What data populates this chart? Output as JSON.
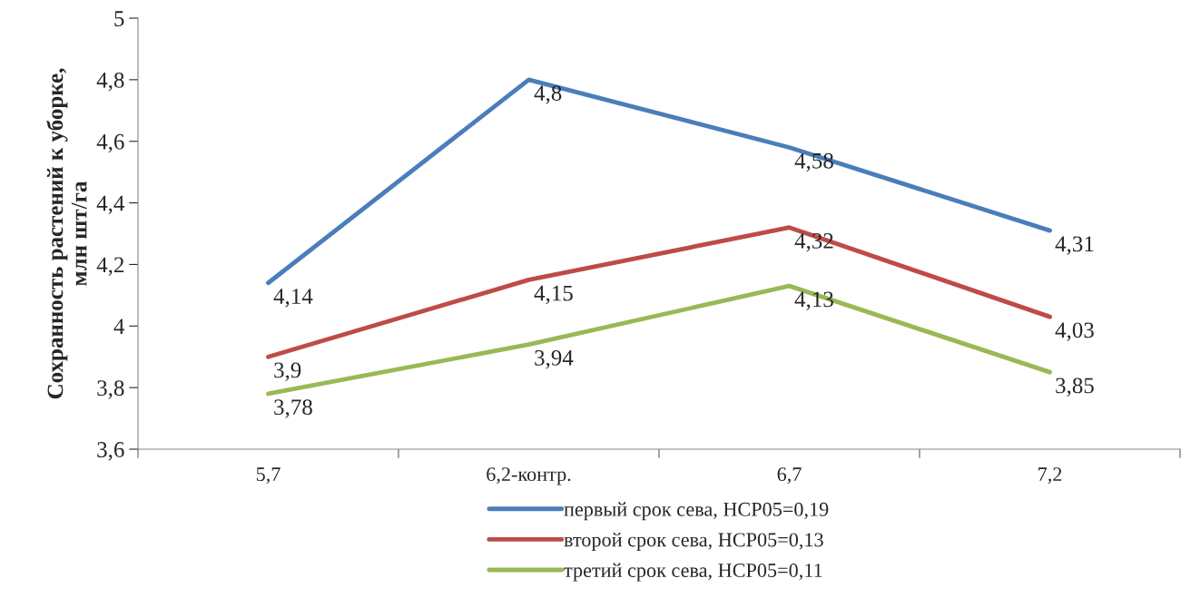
{
  "chart_data": {
    "type": "line",
    "ylabel": "Сохранность растений к уборке,\nмлн шт/га",
    "categories": [
      "5,7",
      "6,2-контр.",
      "6,7",
      "7,2"
    ],
    "series": [
      {
        "name": "первый срок сева, НСР05=0,19",
        "color": "#4a7ebb",
        "values": [
          4.14,
          4.8,
          4.58,
          4.31
        ],
        "value_labels": [
          "4,14",
          "4,8",
          "4,58",
          "4,31"
        ]
      },
      {
        "name": "второй срок сева, НСР05=0,13",
        "color": "#be4b48",
        "values": [
          3.9,
          4.15,
          4.32,
          4.03
        ],
        "value_labels": [
          "3,9",
          "4,15",
          "4,32",
          "4,03"
        ]
      },
      {
        "name": "третий срок сева, НСР05=0,11",
        "color": "#98b954",
        "values": [
          3.78,
          3.94,
          4.13,
          3.85
        ],
        "value_labels": [
          "3,78",
          "3,94",
          "4,13",
          "3,85"
        ]
      }
    ],
    "ylim": [
      3.6,
      5
    ],
    "yticks": [
      {
        "value": 3.6,
        "label": "3,6"
      },
      {
        "value": 3.8,
        "label": "3,8"
      },
      4,
      {
        "value": 4.2,
        "label": "4,2"
      },
      {
        "value": 4.4,
        "label": "4,4"
      },
      {
        "value": 4.6,
        "label": "4,6"
      },
      {
        "value": 4.8,
        "label": "4,8"
      },
      5
    ],
    "grid": false,
    "legend": "bottom",
    "marker": "none",
    "line_style": "solid"
  }
}
